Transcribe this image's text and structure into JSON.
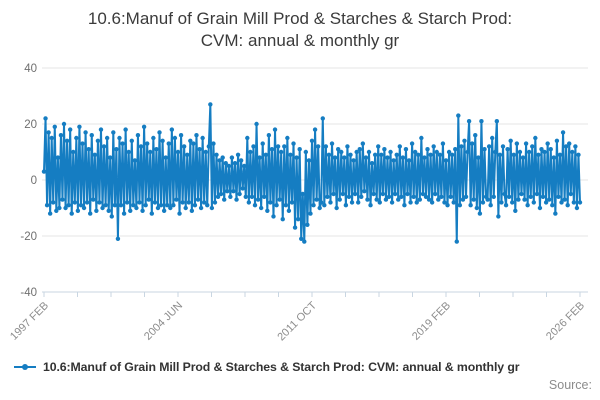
{
  "title": {
    "line1": "10.6:Manuf of Grain Mill Prod & Starches & Starch Prod:",
    "line2": "CVM: annual & monthly gr"
  },
  "legend": {
    "label": "10.6:Manuf of Grain Mill Prod & Starches & Starch Prod: CVM: annual & monthly gr"
  },
  "source": {
    "label": "Source:"
  },
  "colors": {
    "series": "#157dc2",
    "grid": "#e6e6e6",
    "axis": "#c9d6e2",
    "x_tick_label": "#8d8d8d",
    "y_tick_label": "#6f6f6f",
    "title": "#3b3b3b",
    "legend_text": "#333333",
    "source_text": "#8c8c8c"
  },
  "chart_data": {
    "type": "line",
    "title": "10.6:Manuf of Grain Mill Prod & Starches & Starch Prod: CVM: annual & monthly gr",
    "xlabel": "",
    "ylabel": "",
    "ylim": [
      -40,
      40
    ],
    "y_ticks": [
      40,
      20,
      0,
      -20,
      -40
    ],
    "x_start": "1997 FEB",
    "x_end": "2026 FEB",
    "x_frequency": "monthly",
    "x_tick_count": 17,
    "x_labeled_every": 4,
    "x_tick_labels": [
      "1997 FEB",
      "2004 JUN",
      "2011 OCT",
      "2019 FEB",
      "2026 FEB"
    ],
    "grid": "horizontal",
    "legend_position": "bottom-left",
    "marker": "circle",
    "series": [
      {
        "name": "10.6:Manuf of Grain Mill Prod & Starches & Starch Prod: CVM: annual & monthly gr",
        "color": "#157dc2",
        "values": [
          3,
          22,
          -9,
          17,
          -12,
          15,
          -8,
          19,
          -11,
          8,
          -10,
          16,
          -7,
          20,
          -10,
          14,
          -9,
          18,
          -12,
          10,
          -8,
          15,
          -11,
          19,
          -9,
          13,
          -10,
          17,
          -8,
          11,
          -12,
          16,
          -7,
          9,
          -11,
          14,
          -8,
          18,
          -10,
          12,
          -9,
          15,
          -11,
          8,
          -13,
          17,
          -9,
          11,
          -21,
          15,
          -9,
          13,
          -12,
          18,
          -8,
          10,
          -11,
          14,
          -9,
          7,
          -10,
          16,
          -8,
          12,
          -11,
          19,
          -9,
          13,
          -7,
          10,
          -12,
          15,
          -8,
          11,
          -10,
          17,
          -9,
          14,
          -11,
          8,
          -9,
          13,
          -10,
          18,
          -9,
          15,
          -7,
          10,
          -12,
          16,
          -8,
          12,
          -10,
          9,
          -8,
          14,
          -11,
          13,
          -9,
          16,
          -7,
          11,
          -10,
          15,
          -8,
          10,
          -9,
          12,
          27,
          -10,
          13,
          -8,
          9,
          -6,
          7,
          -5,
          8,
          -7,
          6,
          -4,
          5,
          -6,
          8,
          -4,
          6,
          -7,
          9,
          -5,
          7,
          -3,
          5,
          -6,
          15,
          -8,
          10,
          -6,
          12,
          -9,
          20,
          -7,
          8,
          -10,
          13,
          -6,
          9,
          -11,
          16,
          -8,
          11,
          -13,
          18,
          -9,
          12,
          -7,
          10,
          -14,
          12,
          -9,
          15,
          -11,
          9,
          -8,
          13,
          -17,
          8,
          -14,
          11,
          -21,
          -5,
          -22,
          10,
          -16,
          7,
          -12,
          14,
          -9,
          18,
          -7,
          12,
          -10,
          -8,
          22,
          -9,
          12,
          -6,
          9,
          -8,
          13,
          -5,
          8,
          -10,
          11,
          -7,
          10,
          -5,
          8,
          -9,
          12,
          -6,
          9,
          -8,
          7,
          -5,
          10,
          -8,
          11,
          -6,
          13,
          -4,
          8,
          -7,
          10,
          -9,
          6,
          -5,
          9,
          -7,
          12,
          -8,
          9,
          -5,
          11,
          -7,
          8,
          -6,
          10,
          -8,
          7,
          -5,
          9,
          -7,
          12,
          -6,
          8,
          -9,
          11,
          -5,
          7,
          -8,
          13,
          -6,
          10,
          -8,
          9,
          -7,
          15,
          -5,
          8,
          -6,
          11,
          -7,
          9,
          -8,
          12,
          -5,
          10,
          -7,
          9,
          -6,
          13,
          -8,
          7,
          -9,
          10,
          -6,
          9,
          -8,
          11,
          -22,
          23,
          -9,
          12,
          -7,
          14,
          -6,
          10,
          21,
          -9,
          13,
          -7,
          16,
          -10,
          8,
          -12,
          21,
          -8,
          11,
          -6,
          -7,
          12,
          -9,
          15,
          -6,
          10,
          21,
          -13,
          9,
          -8,
          12,
          -5,
          -9,
          11,
          -6,
          14,
          -8,
          9,
          -11,
          13,
          -7,
          10,
          -5,
          8,
          -7,
          13,
          -9,
          10,
          -6,
          12,
          -8,
          15,
          -5,
          9,
          -10,
          11,
          -6,
          10,
          -8,
          13,
          -7,
          11,
          -9,
          8,
          -12,
          14,
          -6,
          9,
          -8,
          17,
          -7,
          12,
          -9,
          13,
          -5,
          10,
          -8,
          12,
          -10,
          9,
          -8
        ]
      }
    ]
  }
}
